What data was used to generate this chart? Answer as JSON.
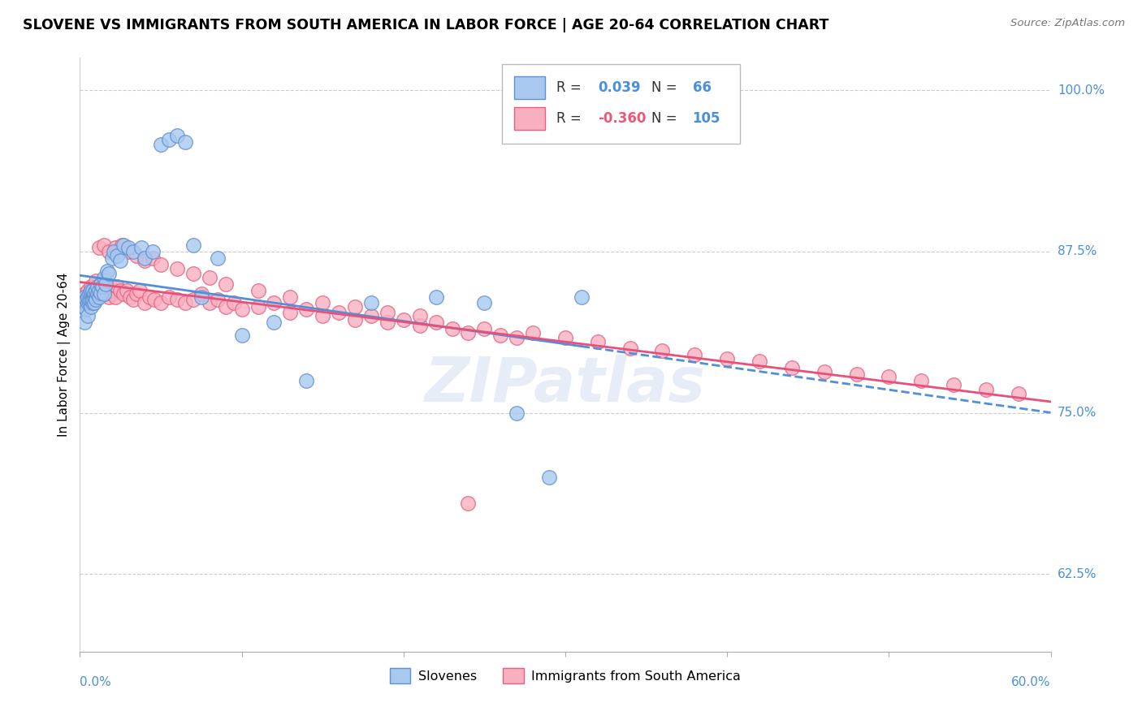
{
  "title": "SLOVENE VS IMMIGRANTS FROM SOUTH AMERICA IN LABOR FORCE | AGE 20-64 CORRELATION CHART",
  "source": "Source: ZipAtlas.com",
  "ylabel": "In Labor Force | Age 20-64",
  "ytick_labels": [
    "62.5%",
    "75.0%",
    "87.5%",
    "100.0%"
  ],
  "ytick_values": [
    0.625,
    0.75,
    0.875,
    1.0
  ],
  "xmin": 0.0,
  "xmax": 0.6,
  "ymin": 0.565,
  "ymax": 1.025,
  "legend_blue_r": "0.039",
  "legend_blue_n": "66",
  "legend_pink_r": "-0.360",
  "legend_pink_n": "105",
  "legend_label_blue": "Slovenes",
  "legend_label_pink": "Immigrants from South America",
  "blue_fill": "#a8c8f0",
  "pink_fill": "#f8b0c0",
  "blue_edge": "#6090d0",
  "pink_edge": "#e86080",
  "blue_line": "#5090d8",
  "pink_line": "#e8507a",
  "watermark": "ZIPatlas",
  "blue_scatter_x": [
    0.001,
    0.002,
    0.002,
    0.003,
    0.003,
    0.003,
    0.004,
    0.004,
    0.005,
    0.005,
    0.005,
    0.006,
    0.006,
    0.006,
    0.007,
    0.007,
    0.007,
    0.007,
    0.008,
    0.008,
    0.008,
    0.008,
    0.009,
    0.009,
    0.009,
    0.01,
    0.01,
    0.01,
    0.011,
    0.011,
    0.012,
    0.012,
    0.013,
    0.013,
    0.014,
    0.015,
    0.015,
    0.016,
    0.017,
    0.018,
    0.02,
    0.021,
    0.023,
    0.025,
    0.027,
    0.03,
    0.033,
    0.038,
    0.04,
    0.045,
    0.05,
    0.055,
    0.06,
    0.065,
    0.07,
    0.075,
    0.085,
    0.1,
    0.12,
    0.14,
    0.18,
    0.22,
    0.25,
    0.27,
    0.29,
    0.31
  ],
  "blue_scatter_y": [
    0.838,
    0.836,
    0.832,
    0.84,
    0.835,
    0.82,
    0.838,
    0.83,
    0.835,
    0.84,
    0.825,
    0.835,
    0.838,
    0.842,
    0.832,
    0.838,
    0.842,
    0.845,
    0.835,
    0.84,
    0.838,
    0.845,
    0.84,
    0.835,
    0.843,
    0.84,
    0.838,
    0.845,
    0.842,
    0.848,
    0.84,
    0.845,
    0.843,
    0.85,
    0.848,
    0.842,
    0.855,
    0.85,
    0.86,
    0.858,
    0.87,
    0.875,
    0.872,
    0.868,
    0.88,
    0.878,
    0.875,
    0.878,
    0.87,
    0.875,
    0.958,
    0.962,
    0.965,
    0.96,
    0.88,
    0.84,
    0.87,
    0.81,
    0.82,
    0.775,
    0.835,
    0.84,
    0.835,
    0.75,
    0.7,
    0.84
  ],
  "pink_scatter_x": [
    0.001,
    0.002,
    0.003,
    0.003,
    0.004,
    0.005,
    0.005,
    0.006,
    0.006,
    0.007,
    0.007,
    0.008,
    0.008,
    0.009,
    0.01,
    0.01,
    0.011,
    0.012,
    0.013,
    0.014,
    0.015,
    0.016,
    0.017,
    0.018,
    0.019,
    0.02,
    0.021,
    0.022,
    0.023,
    0.025,
    0.027,
    0.029,
    0.031,
    0.033,
    0.035,
    0.037,
    0.04,
    0.043,
    0.046,
    0.05,
    0.055,
    0.06,
    0.065,
    0.07,
    0.075,
    0.08,
    0.085,
    0.09,
    0.095,
    0.1,
    0.11,
    0.12,
    0.13,
    0.14,
    0.15,
    0.16,
    0.17,
    0.18,
    0.19,
    0.2,
    0.21,
    0.22,
    0.23,
    0.24,
    0.25,
    0.26,
    0.27,
    0.28,
    0.3,
    0.32,
    0.34,
    0.36,
    0.38,
    0.4,
    0.42,
    0.44,
    0.46,
    0.48,
    0.5,
    0.52,
    0.54,
    0.56,
    0.58,
    0.01,
    0.012,
    0.015,
    0.018,
    0.022,
    0.026,
    0.03,
    0.035,
    0.04,
    0.045,
    0.05,
    0.06,
    0.07,
    0.08,
    0.09,
    0.11,
    0.13,
    0.15,
    0.17,
    0.19,
    0.21,
    0.24
  ],
  "pink_scatter_y": [
    0.84,
    0.838,
    0.842,
    0.835,
    0.84,
    0.838,
    0.845,
    0.838,
    0.842,
    0.84,
    0.848,
    0.842,
    0.838,
    0.845,
    0.84,
    0.848,
    0.842,
    0.845,
    0.85,
    0.848,
    0.845,
    0.842,
    0.845,
    0.84,
    0.848,
    0.842,
    0.845,
    0.84,
    0.848,
    0.845,
    0.842,
    0.845,
    0.84,
    0.838,
    0.842,
    0.845,
    0.835,
    0.84,
    0.838,
    0.835,
    0.84,
    0.838,
    0.835,
    0.838,
    0.842,
    0.835,
    0.838,
    0.832,
    0.835,
    0.83,
    0.832,
    0.835,
    0.828,
    0.83,
    0.825,
    0.828,
    0.822,
    0.825,
    0.82,
    0.822,
    0.818,
    0.82,
    0.815,
    0.812,
    0.815,
    0.81,
    0.808,
    0.812,
    0.808,
    0.805,
    0.8,
    0.798,
    0.795,
    0.792,
    0.79,
    0.785,
    0.782,
    0.78,
    0.778,
    0.775,
    0.772,
    0.768,
    0.765,
    0.852,
    0.878,
    0.88,
    0.875,
    0.878,
    0.88,
    0.875,
    0.872,
    0.868,
    0.87,
    0.865,
    0.862,
    0.858,
    0.855,
    0.85,
    0.845,
    0.84,
    0.835,
    0.832,
    0.828,
    0.825,
    0.68
  ]
}
